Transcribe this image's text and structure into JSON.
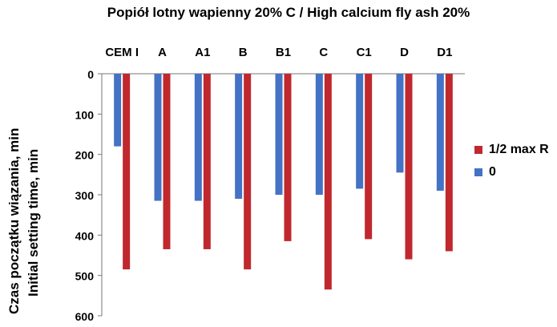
{
  "chart_data": {
    "type": "bar",
    "title": "Popiół lotny wapienny 20% C / High calcium fly ash 20%",
    "ylabel_pl": "Czas początku wiązania, min",
    "ylabel_en": "Initial setting time, min",
    "categories": [
      "CEM I",
      "A",
      "A1",
      "B",
      "B1",
      "C",
      "C1",
      "D",
      "D1"
    ],
    "series": [
      {
        "name": "0",
        "color": "#4472C4",
        "values": [
          180,
          315,
          315,
          310,
          300,
          300,
          285,
          245,
          290
        ]
      },
      {
        "name": "1/2 max R",
        "color": "#C0282E",
        "values": [
          485,
          435,
          435,
          485,
          415,
          535,
          410,
          460,
          440
        ]
      }
    ],
    "yticks": [
      "0",
      "100",
      "200",
      "300",
      "400",
      "500",
      "600"
    ],
    "ylim": [
      0,
      600
    ],
    "legend_position": "right",
    "y_axis_inverted": true
  }
}
